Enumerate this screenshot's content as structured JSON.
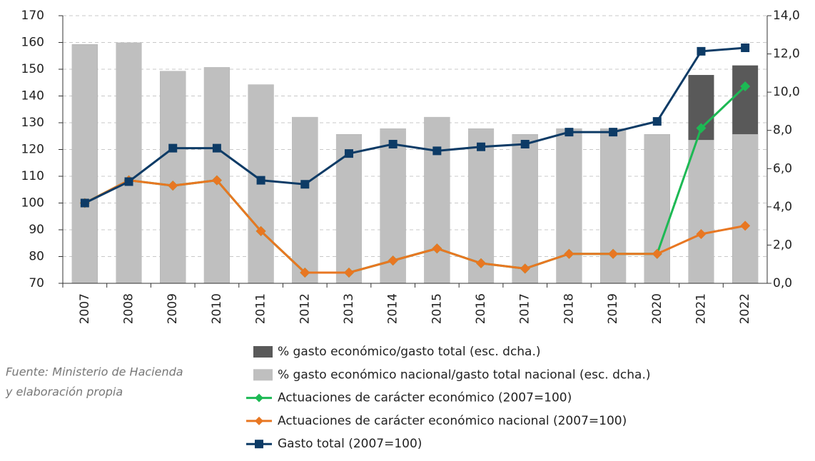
{
  "chart_data": {
    "type": "combo",
    "categories": [
      "2007",
      "2008",
      "2009",
      "2010",
      "2011",
      "2012",
      "2013",
      "2014",
      "2015",
      "2016",
      "2017",
      "2018",
      "2019",
      "2020",
      "2021",
      "2022"
    ],
    "series": [
      {
        "name": "% gasto económico/gasto total (esc. dcha.)",
        "type": "bar",
        "axis": "y2",
        "color": "#595959",
        "values": [
          12.5,
          12.6,
          11.1,
          11.3,
          10.4,
          8.7,
          7.8,
          8.1,
          8.7,
          8.1,
          7.8,
          8.1,
          8.1,
          7.8,
          10.9,
          11.4
        ]
      },
      {
        "name": "% gasto económico nacional/gasto total nacional (esc. dcha.)",
        "type": "bar",
        "axis": "y2",
        "color": "#bfbfbf",
        "values": [
          12.5,
          12.6,
          11.1,
          11.3,
          10.4,
          8.7,
          7.8,
          8.1,
          8.7,
          8.1,
          7.8,
          8.1,
          8.1,
          7.8,
          7.5,
          7.8
        ]
      },
      {
        "name": "Actuaciones de carácter económico (2007=100)",
        "type": "line",
        "marker": "diamond",
        "color": "#1db954",
        "values": [
          100,
          108.5,
          106.5,
          108.5,
          89.5,
          74,
          74,
          78.5,
          83,
          77.5,
          75.5,
          81,
          81,
          81,
          128,
          143.6
        ]
      },
      {
        "name": "Actuaciones de carácter económico nacional (2007=100)",
        "type": "line",
        "marker": "diamond",
        "color": "#e87722",
        "values": [
          100,
          108.5,
          106.5,
          108.5,
          89.5,
          74,
          74,
          78.5,
          83,
          77.5,
          75.5,
          81,
          81,
          81,
          88.4,
          91.5
        ]
      },
      {
        "name": "Gasto total (2007=100)",
        "type": "line",
        "marker": "square",
        "color": "#0d3b66",
        "values": [
          100,
          108,
          120.5,
          120.5,
          108.5,
          107,
          118.5,
          122,
          119.5,
          121,
          122,
          126.5,
          126.5,
          130.5,
          156.7,
          158
        ]
      }
    ],
    "ylim": [
      70,
      170
    ],
    "yticks": [
      70,
      80,
      90,
      100,
      110,
      120,
      130,
      140,
      150,
      160,
      170
    ],
    "y2lim": [
      0,
      14
    ],
    "y2ticks": [
      {
        "value": 0,
        "label": "0,0"
      },
      {
        "value": 2,
        "label": "2,0"
      },
      {
        "value": 4,
        "label": "4,0"
      },
      {
        "value": 6,
        "label": "6,0"
      },
      {
        "value": 8,
        "label": "8,0"
      },
      {
        "value": 10,
        "label": "10,0"
      },
      {
        "value": 12,
        "label": "12,0"
      },
      {
        "value": 14,
        "label": "14,0"
      }
    ],
    "grid": true,
    "source": [
      "Fuente: Ministerio de Hacienda",
      "y elaboración propia"
    ]
  }
}
